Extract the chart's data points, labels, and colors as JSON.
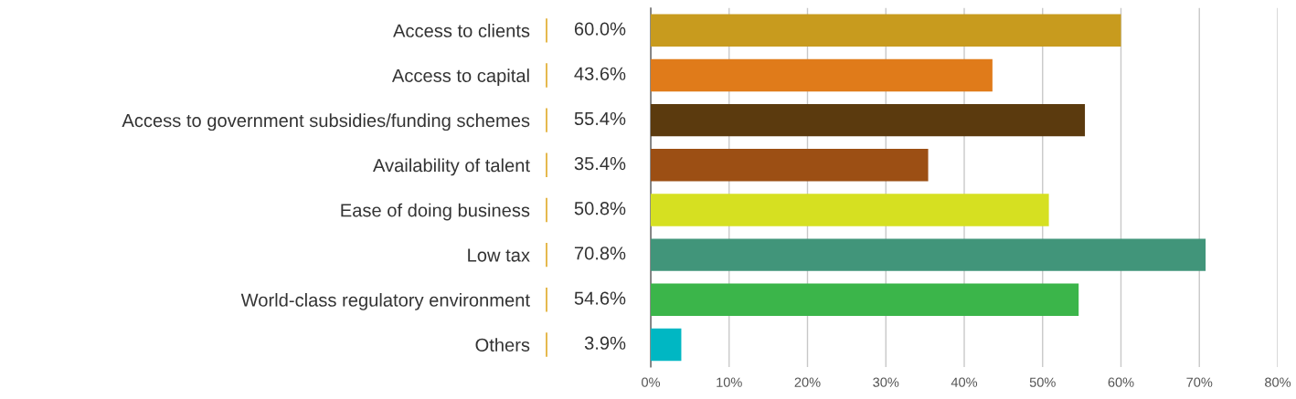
{
  "chart_data": {
    "type": "bar",
    "orientation": "horizontal",
    "categories": [
      "Access to clients",
      "Access to capital",
      "Access to government subsidies/funding schemes",
      "Availability of talent",
      "Ease of doing business",
      "Low tax",
      "World-class regulatory environment",
      "Others"
    ],
    "values": [
      60.0,
      43.6,
      55.4,
      35.4,
      50.8,
      70.8,
      54.6,
      3.9
    ],
    "value_labels": [
      "60.0%",
      "43.6%",
      "55.4%",
      "35.4%",
      "50.8%",
      "70.8%",
      "54.6%",
      "3.9%"
    ],
    "colors": [
      "#c89b1e",
      "#e07b1a",
      "#5b3a0e",
      "#9c4f14",
      "#d6e021",
      "#41957a",
      "#3bb54a",
      "#00b7c3"
    ],
    "xlim": [
      0,
      80
    ],
    "xticks": [
      {
        "value": 0,
        "label": "0%"
      },
      {
        "value": 10,
        "label": "10%"
      },
      {
        "value": 20,
        "label": "20%"
      },
      {
        "value": 30,
        "label": "30%"
      },
      {
        "value": 40,
        "label": "40%"
      },
      {
        "value": 50,
        "label": "50%"
      },
      {
        "value": 60,
        "label": "60%"
      },
      {
        "value": 70,
        "label": "70%"
      },
      {
        "value": 80,
        "label": "80%"
      }
    ],
    "grid": "x"
  }
}
